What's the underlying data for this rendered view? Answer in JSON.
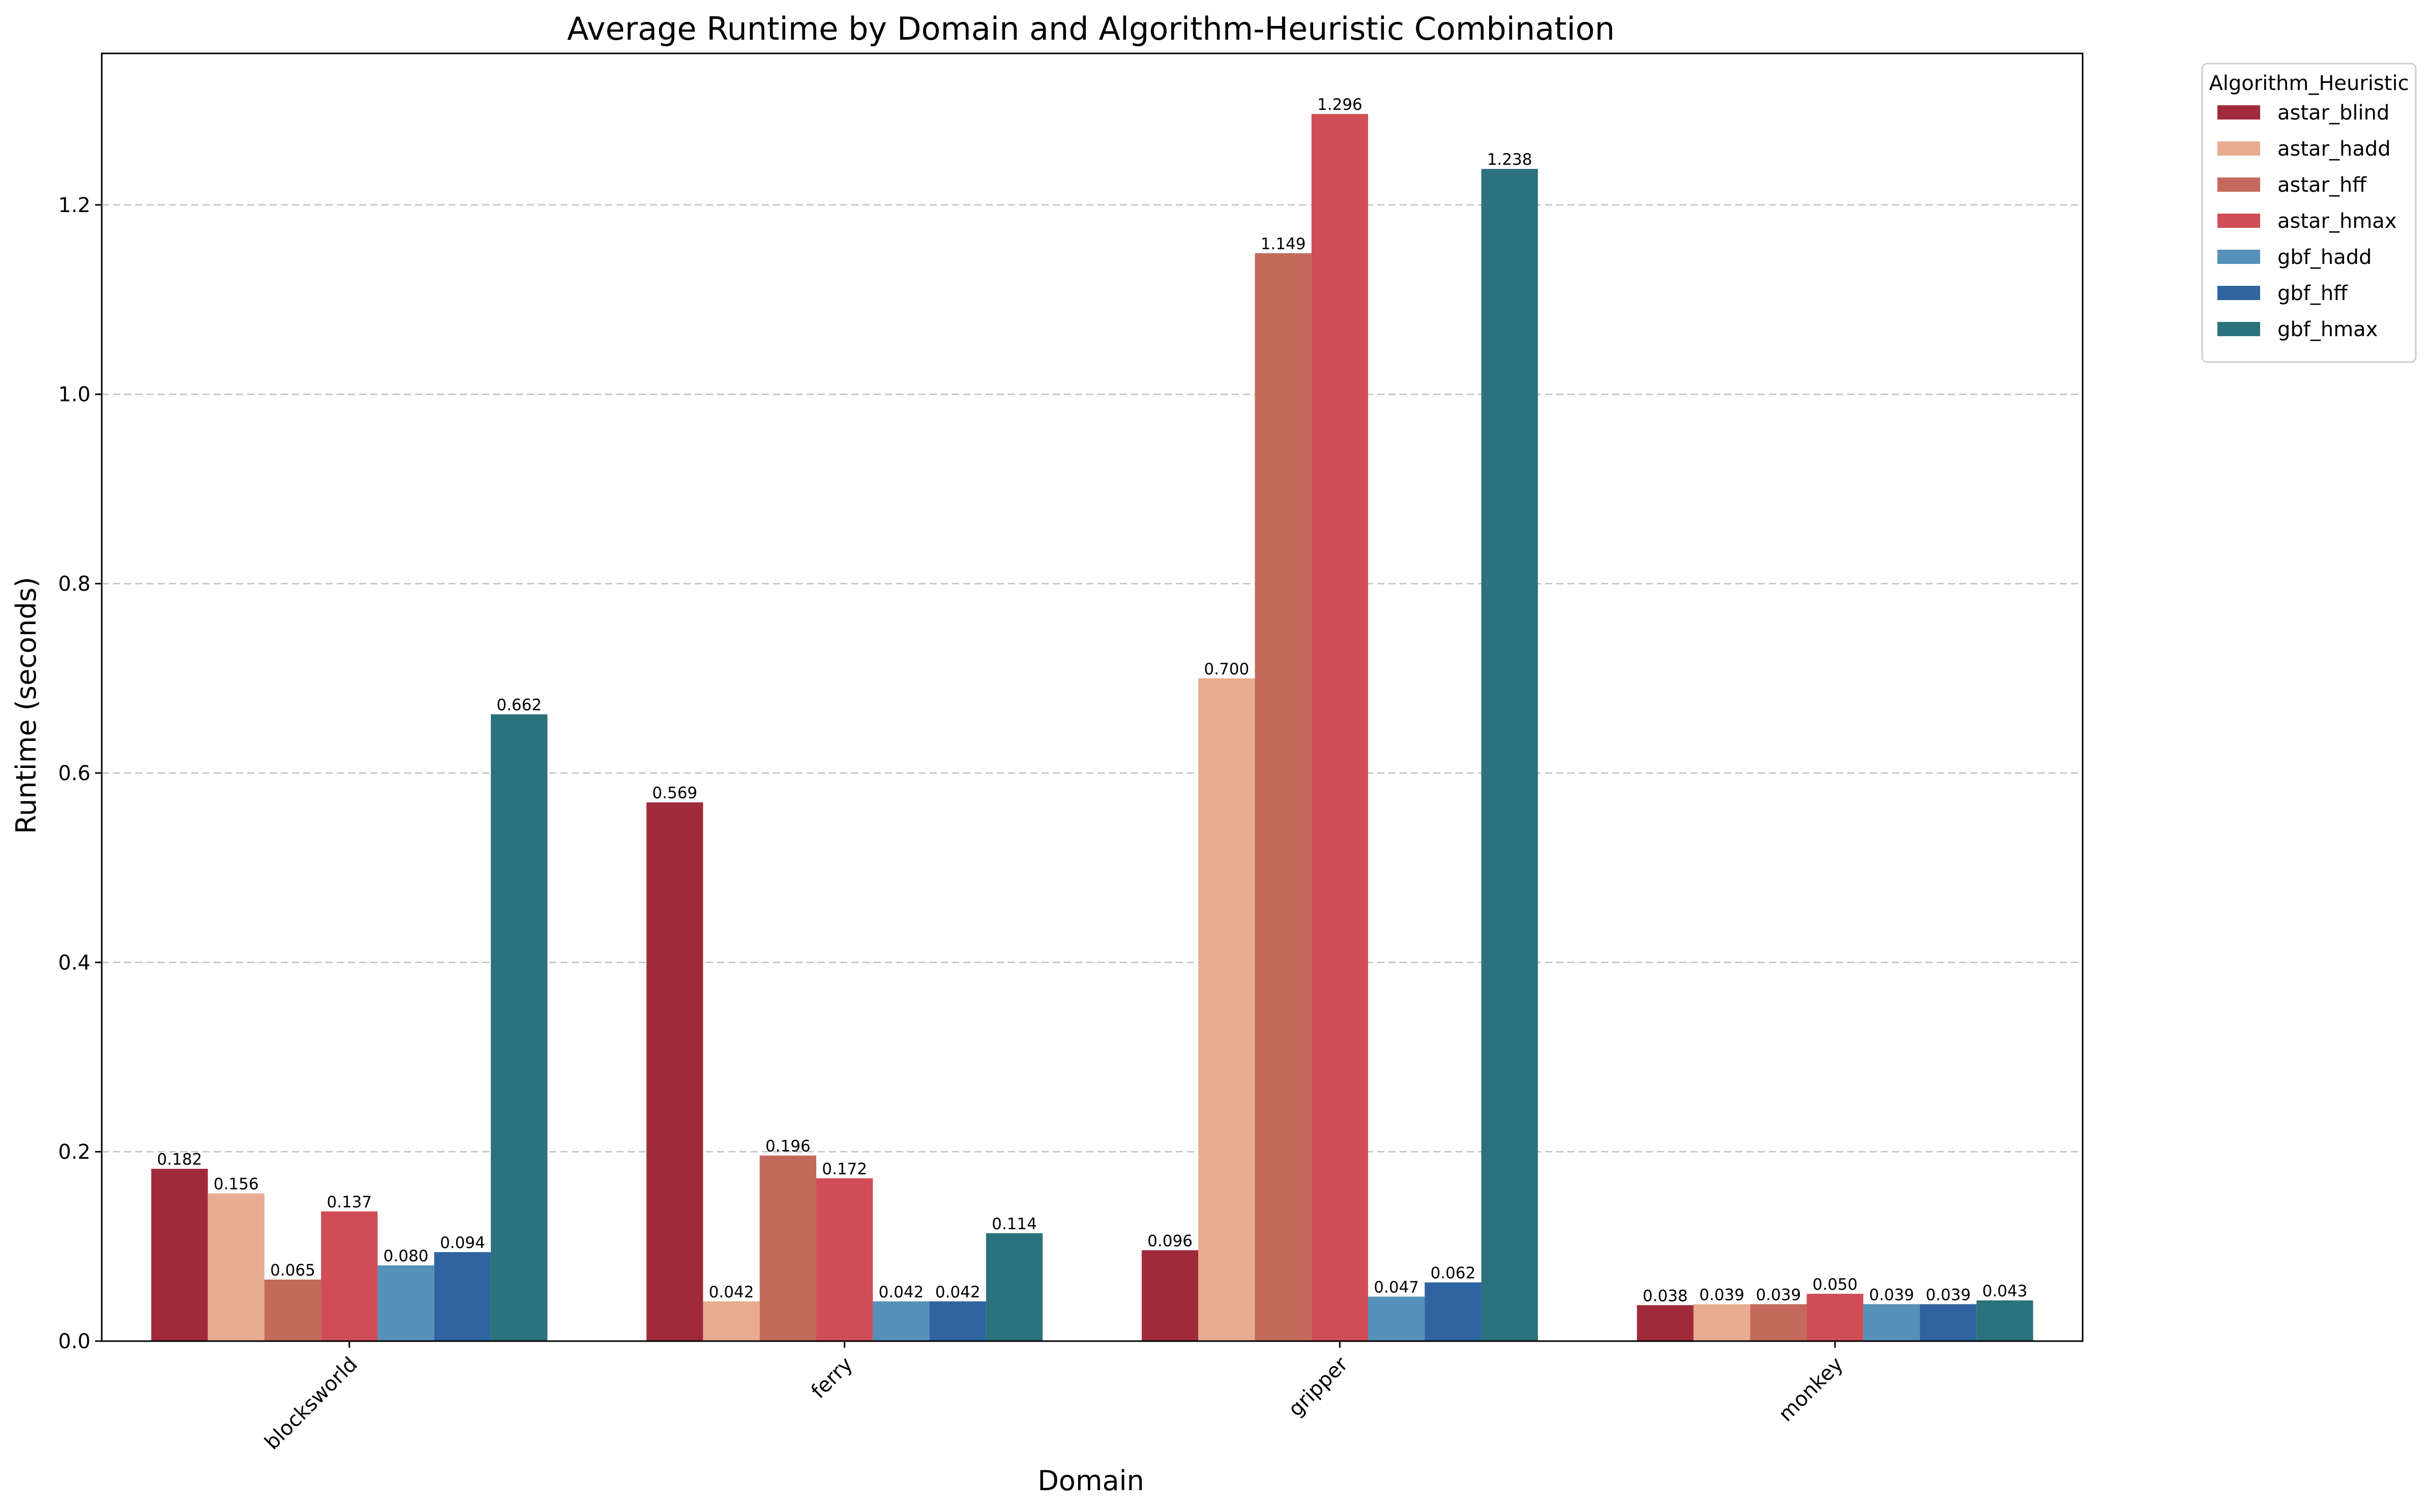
{
  "chart_data": {
    "type": "bar",
    "title": "Average Runtime by Domain and Algorithm-Heuristic Combination",
    "xlabel": "Domain",
    "ylabel": "Runtime (seconds)",
    "categories": [
      "blocksworld",
      "ferry",
      "gripper",
      "monkey"
    ],
    "ylim": [
      0,
      1.36
    ],
    "yticks": [
      "0.0",
      "0.2",
      "0.4",
      "0.6",
      "0.8",
      "1.0",
      "1.2"
    ],
    "grid": true,
    "legend": {
      "title": "Algorithm_Heuristic",
      "placement": "outside-top-right"
    },
    "series": [
      {
        "name": "astar_blind",
        "color": "#a02a3a",
        "values": [
          0.182,
          0.569,
          0.096,
          0.038
        ],
        "labels": [
          "0.182",
          "0.569",
          "0.096",
          "0.038"
        ]
      },
      {
        "name": "astar_hadd",
        "color": "#e8ac90",
        "values": [
          0.156,
          0.042,
          0.7,
          0.039
        ],
        "labels": [
          "0.156",
          "0.042",
          "0.700",
          "0.039"
        ]
      },
      {
        "name": "astar_hff",
        "color": "#c46a5c",
        "values": [
          0.065,
          0.196,
          1.149,
          0.039
        ],
        "labels": [
          "0.065",
          "0.196",
          "1.149",
          "0.039"
        ]
      },
      {
        "name": "astar_hmax",
        "color": "#d14d56",
        "values": [
          0.137,
          0.172,
          1.296,
          0.05
        ],
        "labels": [
          "0.137",
          "0.172",
          "1.296",
          "0.050"
        ]
      },
      {
        "name": "gbf_hadd",
        "color": "#5591b8",
        "values": [
          0.08,
          0.042,
          0.047,
          0.039
        ],
        "labels": [
          "0.080",
          "0.042",
          "0.047",
          "0.039"
        ]
      },
      {
        "name": "gbf_hff",
        "color": "#2f64a0",
        "values": [
          0.094,
          0.042,
          0.062,
          0.039
        ],
        "labels": [
          "0.094",
          "0.042",
          "0.062",
          "0.039"
        ]
      },
      {
        "name": "gbf_hmax",
        "color": "#2b727c",
        "values": [
          0.662,
          0.114,
          1.238,
          0.043
        ],
        "labels": [
          "0.662",
          "0.114",
          "1.238",
          "0.043"
        ]
      }
    ]
  }
}
